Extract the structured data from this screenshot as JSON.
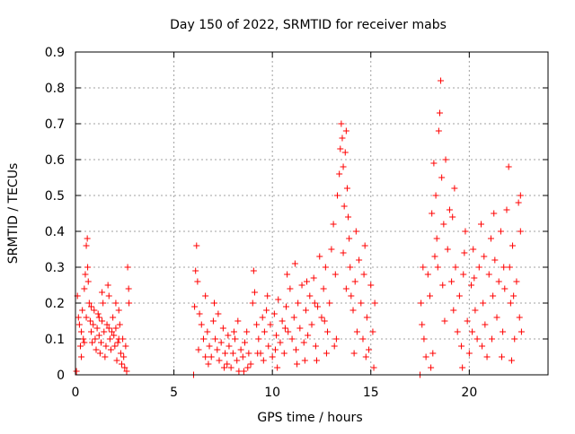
{
  "chart_data": {
    "type": "scatter",
    "title": "Day 150 of 2022, SRMTID for receiver mabs",
    "xlabel": "GPS time / hours",
    "ylabel": "SRMTID / TECUs",
    "xlim": [
      0,
      24
    ],
    "ylim": [
      0,
      0.9
    ],
    "x_ticks": [
      0,
      5,
      10,
      15,
      20
    ],
    "x_tick_labels": [
      "0",
      "5",
      "10",
      "15",
      "20"
    ],
    "y_ticks": [
      0,
      0.1,
      0.2,
      0.3,
      0.4,
      0.5,
      0.6,
      0.7,
      0.8,
      0.9
    ],
    "y_tick_labels": [
      "0",
      "0.1",
      "0.2",
      "0.3",
      "0.4",
      "0.5",
      "0.6",
      "0.7",
      "0.8",
      "0.9"
    ],
    "grid": true,
    "marker": "+",
    "color": "#ff0000",
    "series": [
      {
        "name": "SRMTID",
        "points": [
          [
            0.05,
            0.01
          ],
          [
            0.1,
            0.22
          ],
          [
            0.15,
            0.16
          ],
          [
            0.2,
            0.14
          ],
          [
            0.25,
            0.08
          ],
          [
            0.3,
            0.12
          ],
          [
            0.35,
            0.18
          ],
          [
            0.4,
            0.1
          ],
          [
            0.45,
            0.24
          ],
          [
            0.5,
            0.28
          ],
          [
            0.55,
            0.36
          ],
          [
            0.6,
            0.38
          ],
          [
            0.62,
            0.3
          ],
          [
            0.65,
            0.26
          ],
          [
            0.7,
            0.2
          ],
          [
            0.75,
            0.15
          ],
          [
            0.8,
            0.12
          ],
          [
            0.85,
            0.09
          ],
          [
            0.9,
            0.14
          ],
          [
            0.95,
            0.18
          ],
          [
            1.0,
            0.1
          ],
          [
            1.05,
            0.07
          ],
          [
            1.1,
            0.13
          ],
          [
            1.15,
            0.17
          ],
          [
            1.2,
            0.11
          ],
          [
            1.25,
            0.06
          ],
          [
            1.3,
            0.09
          ],
          [
            1.35,
            0.15
          ],
          [
            1.4,
            0.2
          ],
          [
            1.45,
            0.12
          ],
          [
            1.5,
            0.05
          ],
          [
            1.55,
            0.08
          ],
          [
            1.6,
            0.14
          ],
          [
            1.65,
            0.25
          ],
          [
            1.7,
            0.22
          ],
          [
            1.75,
            0.1
          ],
          [
            1.8,
            0.07
          ],
          [
            1.85,
            0.12
          ],
          [
            1.9,
            0.16
          ],
          [
            1.95,
            0.11
          ],
          [
            2.0,
            0.08
          ],
          [
            2.05,
            0.13
          ],
          [
            2.1,
            0.04
          ],
          [
            2.15,
            0.09
          ],
          [
            2.2,
            0.18
          ],
          [
            2.25,
            0.14
          ],
          [
            2.3,
            0.06
          ],
          [
            2.35,
            0.03
          ],
          [
            2.4,
            0.1
          ],
          [
            2.45,
            0.05
          ],
          [
            2.5,
            0.02
          ],
          [
            2.55,
            0.08
          ],
          [
            2.6,
            0.01
          ],
          [
            2.65,
            0.3
          ],
          [
            2.7,
            0.24
          ],
          [
            2.72,
            0.2
          ],
          [
            0.3,
            0.05
          ],
          [
            0.45,
            0.09
          ],
          [
            0.8,
            0.19
          ],
          [
            1.2,
            0.16
          ],
          [
            1.7,
            0.13
          ],
          [
            2.2,
            0.1
          ],
          [
            0.55,
            0.16
          ],
          [
            1.35,
            0.23
          ],
          [
            2.05,
            0.2
          ],
          [
            6.0,
            0.0
          ],
          [
            6.05,
            0.19
          ],
          [
            6.1,
            0.29
          ],
          [
            6.15,
            0.36
          ],
          [
            6.2,
            0.26
          ],
          [
            6.3,
            0.17
          ],
          [
            6.4,
            0.14
          ],
          [
            6.5,
            0.1
          ],
          [
            6.6,
            0.22
          ],
          [
            6.7,
            0.12
          ],
          [
            6.8,
            0.08
          ],
          [
            6.9,
            0.05
          ],
          [
            7.0,
            0.15
          ],
          [
            7.1,
            0.1
          ],
          [
            7.2,
            0.07
          ],
          [
            7.3,
            0.04
          ],
          [
            7.4,
            0.09
          ],
          [
            7.5,
            0.13
          ],
          [
            7.6,
            0.06
          ],
          [
            7.7,
            0.03
          ],
          [
            7.8,
            0.08
          ],
          [
            7.9,
            0.02
          ],
          [
            8.0,
            0.06
          ],
          [
            8.1,
            0.1
          ],
          [
            8.2,
            0.04
          ],
          [
            8.3,
            0.01
          ],
          [
            8.4,
            0.07
          ],
          [
            8.5,
            0.05
          ],
          [
            8.6,
            0.09
          ],
          [
            8.7,
            0.12
          ],
          [
            8.8,
            0.06
          ],
          [
            8.9,
            0.03
          ],
          [
            9.0,
            0.2
          ],
          [
            9.05,
            0.29
          ],
          [
            9.1,
            0.23
          ],
          [
            9.2,
            0.14
          ],
          [
            9.3,
            0.1
          ],
          [
            9.4,
            0.06
          ],
          [
            9.5,
            0.16
          ],
          [
            9.6,
            0.12
          ],
          [
            9.7,
            0.18
          ],
          [
            9.8,
            0.08
          ],
          [
            9.9,
            0.14
          ],
          [
            10.0,
            0.05
          ],
          [
            10.1,
            0.17
          ],
          [
            10.2,
            0.11
          ],
          [
            10.3,
            0.21
          ],
          [
            10.4,
            0.09
          ],
          [
            10.5,
            0.15
          ],
          [
            10.6,
            0.06
          ],
          [
            10.7,
            0.19
          ],
          [
            10.8,
            0.12
          ],
          [
            10.9,
            0.24
          ],
          [
            11.0,
            0.1
          ],
          [
            11.1,
            0.16
          ],
          [
            11.2,
            0.07
          ],
          [
            11.3,
            0.2
          ],
          [
            11.4,
            0.13
          ],
          [
            11.5,
            0.25
          ],
          [
            11.6,
            0.09
          ],
          [
            11.7,
            0.18
          ],
          [
            11.8,
            0.11
          ],
          [
            11.9,
            0.22
          ],
          [
            12.0,
            0.14
          ],
          [
            12.1,
            0.27
          ],
          [
            12.2,
            0.08
          ],
          [
            12.3,
            0.19
          ],
          [
            12.4,
            0.33
          ],
          [
            12.5,
            0.16
          ],
          [
            12.6,
            0.24
          ],
          [
            12.7,
            0.3
          ],
          [
            12.8,
            0.12
          ],
          [
            12.9,
            0.2
          ],
          [
            13.0,
            0.35
          ],
          [
            13.1,
            0.42
          ],
          [
            13.2,
            0.28
          ],
          [
            13.3,
            0.5
          ],
          [
            13.4,
            0.56
          ],
          [
            13.45,
            0.63
          ],
          [
            13.5,
            0.7
          ],
          [
            13.55,
            0.66
          ],
          [
            13.6,
            0.58
          ],
          [
            13.65,
            0.47
          ],
          [
            13.7,
            0.62
          ],
          [
            13.75,
            0.68
          ],
          [
            13.8,
            0.52
          ],
          [
            13.85,
            0.44
          ],
          [
            13.9,
            0.38
          ],
          [
            13.95,
            0.3
          ],
          [
            14.0,
            0.22
          ],
          [
            14.1,
            0.18
          ],
          [
            14.2,
            0.26
          ],
          [
            14.3,
            0.12
          ],
          [
            14.4,
            0.32
          ],
          [
            14.5,
            0.2
          ],
          [
            14.6,
            0.1
          ],
          [
            14.7,
            0.36
          ],
          [
            14.8,
            0.16
          ],
          [
            14.9,
            0.07
          ],
          [
            15.0,
            0.25
          ],
          [
            15.1,
            0.12
          ],
          [
            15.15,
            0.02
          ],
          [
            15.2,
            0.2
          ],
          [
            6.6,
            0.05
          ],
          [
            7.05,
            0.2
          ],
          [
            7.55,
            0.02
          ],
          [
            8.05,
            0.12
          ],
          [
            8.55,
            0.01
          ],
          [
            9.55,
            0.04
          ],
          [
            10.25,
            0.02
          ],
          [
            10.75,
            0.28
          ],
          [
            11.25,
            0.03
          ],
          [
            11.75,
            0.26
          ],
          [
            12.25,
            0.04
          ],
          [
            12.75,
            0.06
          ],
          [
            13.25,
            0.1
          ],
          [
            13.75,
            0.24
          ],
          [
            14.25,
            0.4
          ],
          [
            14.75,
            0.05
          ],
          [
            6.25,
            0.07
          ],
          [
            6.75,
            0.03
          ],
          [
            7.25,
            0.17
          ],
          [
            7.75,
            0.11
          ],
          [
            8.25,
            0.15
          ],
          [
            8.75,
            0.02
          ],
          [
            9.25,
            0.06
          ],
          [
            9.75,
            0.22
          ],
          [
            10.15,
            0.07
          ],
          [
            10.65,
            0.13
          ],
          [
            11.15,
            0.31
          ],
          [
            11.65,
            0.04
          ],
          [
            12.15,
            0.2
          ],
          [
            12.65,
            0.15
          ],
          [
            13.15,
            0.08
          ],
          [
            13.6,
            0.34
          ],
          [
            14.15,
            0.06
          ],
          [
            14.65,
            0.28
          ],
          [
            17.5,
            0.0
          ],
          [
            17.55,
            0.2
          ],
          [
            17.6,
            0.14
          ],
          [
            17.7,
            0.1
          ],
          [
            17.8,
            0.05
          ],
          [
            17.9,
            0.28
          ],
          [
            18.0,
            0.22
          ],
          [
            18.05,
            0.02
          ],
          [
            18.1,
            0.45
          ],
          [
            18.2,
            0.59
          ],
          [
            18.3,
            0.5
          ],
          [
            18.35,
            0.38
          ],
          [
            18.4,
            0.3
          ],
          [
            18.45,
            0.68
          ],
          [
            18.5,
            0.73
          ],
          [
            18.55,
            0.82
          ],
          [
            18.6,
            0.55
          ],
          [
            18.7,
            0.42
          ],
          [
            18.8,
            0.6
          ],
          [
            18.9,
            0.35
          ],
          [
            19.0,
            0.46
          ],
          [
            19.1,
            0.26
          ],
          [
            19.2,
            0.18
          ],
          [
            19.3,
            0.3
          ],
          [
            19.4,
            0.12
          ],
          [
            19.5,
            0.22
          ],
          [
            19.6,
            0.08
          ],
          [
            19.7,
            0.28
          ],
          [
            19.8,
            0.4
          ],
          [
            19.9,
            0.15
          ],
          [
            20.0,
            0.06
          ],
          [
            20.1,
            0.25
          ],
          [
            20.2,
            0.35
          ],
          [
            20.3,
            0.18
          ],
          [
            20.4,
            0.1
          ],
          [
            20.5,
            0.3
          ],
          [
            20.6,
            0.42
          ],
          [
            20.7,
            0.2
          ],
          [
            20.8,
            0.14
          ],
          [
            20.9,
            0.05
          ],
          [
            21.0,
            0.28
          ],
          [
            21.1,
            0.38
          ],
          [
            21.2,
            0.22
          ],
          [
            21.3,
            0.32
          ],
          [
            21.4,
            0.16
          ],
          [
            21.5,
            0.26
          ],
          [
            21.6,
            0.4
          ],
          [
            21.7,
            0.12
          ],
          [
            21.8,
            0.24
          ],
          [
            21.9,
            0.46
          ],
          [
            22.0,
            0.58
          ],
          [
            22.05,
            0.3
          ],
          [
            22.1,
            0.2
          ],
          [
            22.2,
            0.36
          ],
          [
            22.3,
            0.1
          ],
          [
            22.4,
            0.26
          ],
          [
            22.5,
            0.48
          ],
          [
            22.55,
            0.16
          ],
          [
            22.6,
            0.4
          ],
          [
            22.65,
            0.12
          ],
          [
            17.65,
            0.3
          ],
          [
            18.15,
            0.06
          ],
          [
            18.65,
            0.25
          ],
          [
            19.15,
            0.44
          ],
          [
            19.65,
            0.02
          ],
          [
            20.15,
            0.12
          ],
          [
            20.65,
            0.08
          ],
          [
            21.15,
            0.1
          ],
          [
            21.65,
            0.05
          ],
          [
            22.15,
            0.04
          ],
          [
            18.25,
            0.33
          ],
          [
            18.75,
            0.15
          ],
          [
            19.25,
            0.52
          ],
          [
            19.75,
            0.34
          ],
          [
            20.25,
            0.27
          ],
          [
            20.75,
            0.33
          ],
          [
            21.25,
            0.45
          ],
          [
            21.75,
            0.3
          ],
          [
            22.25,
            0.22
          ],
          [
            22.6,
            0.5
          ]
        ]
      }
    ]
  }
}
